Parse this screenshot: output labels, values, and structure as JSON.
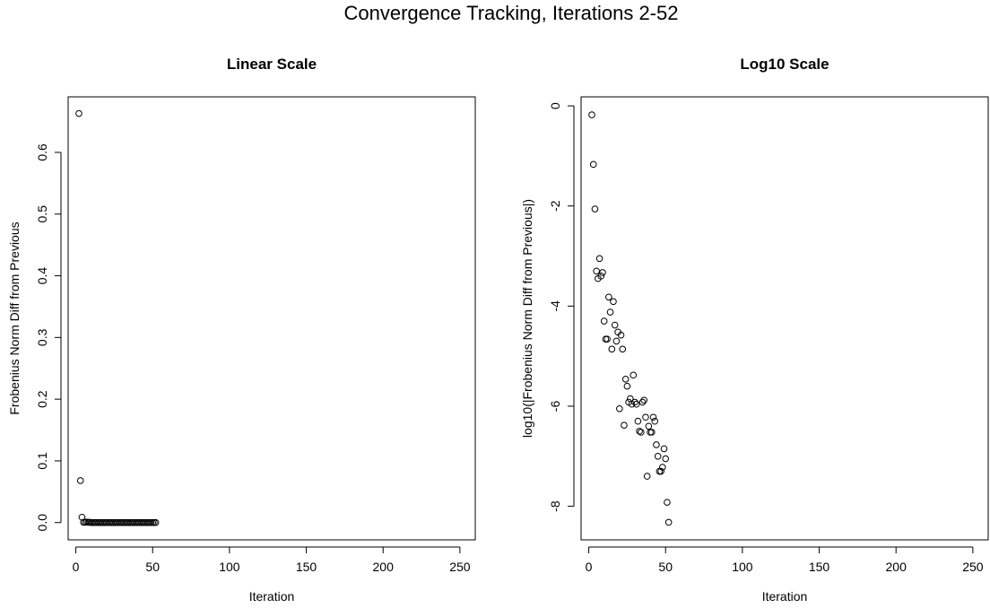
{
  "title": "Convergence Tracking, Iterations 2-52",
  "chart_data": [
    {
      "type": "scatter",
      "title": "Linear Scale",
      "xlabel": "Iteration",
      "ylabel": "Frobenius Norm Diff from Previous",
      "xlim": [
        -5,
        260
      ],
      "ylim": [
        -0.028,
        0.69
      ],
      "xticks": [
        0,
        50,
        100,
        150,
        200,
        250
      ],
      "yticks": [
        0.0,
        0.1,
        0.2,
        0.3,
        0.4,
        0.5,
        0.6
      ],
      "xtick_labels": [
        "0",
        "50",
        "100",
        "150",
        "200",
        "250"
      ],
      "ytick_labels": [
        "0.0",
        "0.1",
        "0.2",
        "0.3",
        "0.4",
        "0.5",
        "0.6"
      ],
      "marker": "open-circle",
      "grid": false,
      "x": [
        2,
        3,
        4,
        5,
        6,
        7,
        8,
        9,
        10,
        11,
        12,
        13,
        14,
        15,
        16,
        17,
        18,
        19,
        20,
        21,
        22,
        23,
        24,
        25,
        26,
        27,
        28,
        29,
        30,
        31,
        32,
        33,
        34,
        35,
        36,
        37,
        38,
        39,
        40,
        41,
        42,
        43,
        44,
        45,
        46,
        47,
        48,
        49,
        50,
        51,
        52
      ],
      "y": [
        0.663,
        0.068,
        0.0087,
        0.0005,
        0.00035,
        0.0009,
        0.0004,
        0.00047,
        5e-05,
        2.2e-05,
        2.2e-05,
        0.00015,
        7.5e-05,
        1.4e-05,
        0.00012,
        4.2e-05,
        2e-05,
        3e-05,
        9e-07,
        2.6e-05,
        1.4e-05,
        4e-07,
        3.5e-06,
        2.5e-06,
        1.2e-06,
        1.4e-06,
        1.1e-06,
        4.2e-06,
        1.2e-06,
        1.1e-06,
        5e-07,
        3.2e-07,
        3e-07,
        1.2e-06,
        1.3e-06,
        6e-07,
        4e-08,
        4e-07,
        3e-07,
        3e-07,
        6e-07,
        5e-07,
        1.7e-07,
        1e-07,
        5e-08,
        5e-08,
        6e-08,
        1.4e-07,
        9e-08,
        1.2e-08,
        5e-09
      ]
    },
    {
      "type": "scatter",
      "title": "Log10 Scale",
      "xlabel": "Iteration",
      "ylabel": "log10(|Frobenius Norm Diff from Previous|)",
      "xlim": [
        -5,
        260
      ],
      "ylim": [
        -8.67,
        0.18
      ],
      "xticks": [
        0,
        50,
        100,
        150,
        200,
        250
      ],
      "yticks": [
        0,
        -2,
        -4,
        -6,
        -8
      ],
      "xtick_labels": [
        "0",
        "50",
        "100",
        "150",
        "200",
        "250"
      ],
      "ytick_labels": [
        "0",
        "-2",
        "-4",
        "-6",
        "-8"
      ],
      "marker": "open-circle",
      "grid": false,
      "x": [
        2,
        3,
        4,
        5,
        6,
        7,
        8,
        9,
        10,
        11,
        12,
        13,
        14,
        15,
        16,
        17,
        18,
        19,
        20,
        21,
        22,
        23,
        24,
        25,
        26,
        27,
        28,
        29,
        30,
        31,
        32,
        33,
        34,
        35,
        36,
        37,
        38,
        39,
        40,
        41,
        42,
        43,
        44,
        45,
        46,
        47,
        48,
        49,
        50,
        51,
        52
      ],
      "y": [
        -0.18,
        -1.17,
        -2.06,
        -3.3,
        -3.45,
        -3.05,
        -3.4,
        -3.33,
        -4.3,
        -4.66,
        -4.66,
        -3.82,
        -4.12,
        -4.86,
        -3.91,
        -4.38,
        -4.7,
        -4.52,
        -6.05,
        -4.58,
        -4.86,
        -6.38,
        -5.46,
        -5.6,
        -5.92,
        -5.85,
        -5.96,
        -5.38,
        -5.92,
        -5.96,
        -6.3,
        -6.5,
        -6.52,
        -5.92,
        -5.88,
        -6.22,
        -7.4,
        -6.4,
        -6.52,
        -6.52,
        -6.22,
        -6.3,
        -6.77,
        -7.0,
        -7.3,
        -7.3,
        -7.22,
        -6.85,
        -7.05,
        -7.92,
        -8.32
      ]
    }
  ]
}
